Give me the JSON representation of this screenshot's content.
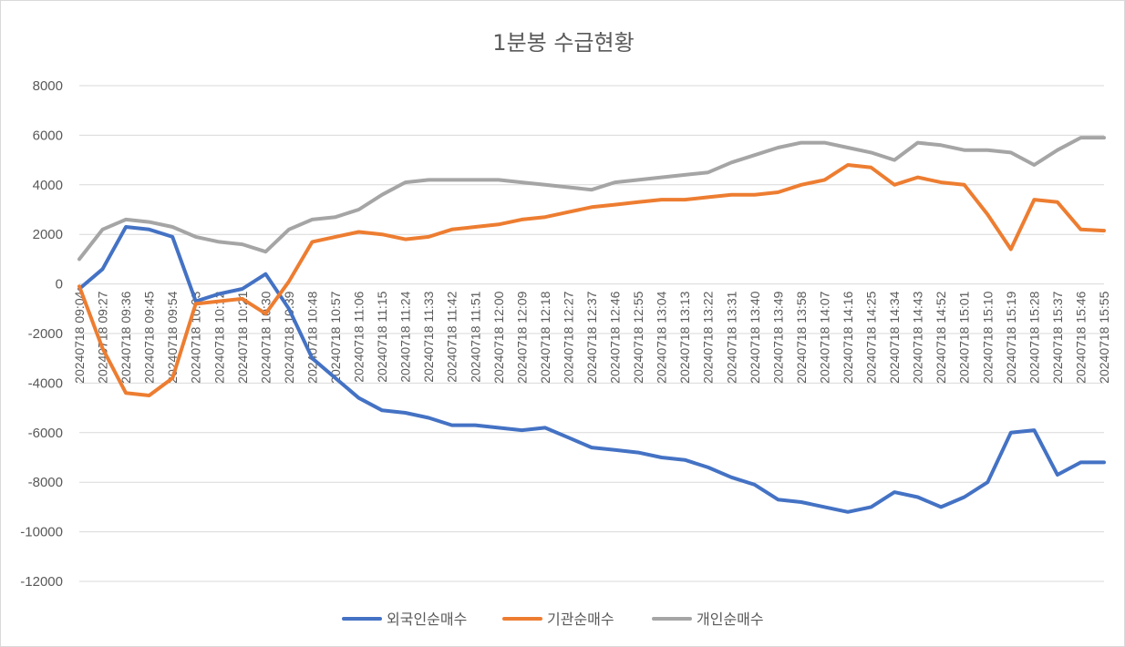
{
  "chart_data": {
    "type": "line",
    "title": "1분봉 수급현황",
    "xlabel": "",
    "ylabel": "",
    "ylim": [
      -12000,
      8000
    ],
    "yticks": [
      8000,
      6000,
      4000,
      2000,
      0,
      -2000,
      -4000,
      -6000,
      -8000,
      -10000,
      -12000
    ],
    "ytick_labels": [
      "8000",
      "6000",
      "4000",
      "2000",
      "0",
      "-2000",
      "-4000",
      "-6000",
      "-8000",
      "-10000",
      "-12000"
    ],
    "xtick_labels": [
      "20240718 09:04",
      "20240718 09:27",
      "20240718 09:36",
      "20240718 09:45",
      "20240718 09:54",
      "20240718 10:03",
      "20240718 10:12",
      "20240718 10:21",
      "20240718 10:30",
      "20240718 10:39",
      "20240718 10:48",
      "20240718 10:57",
      "20240718 11:06",
      "20240718 11:15",
      "20240718 11:24",
      "20240718 11:33",
      "20240718 11:42",
      "20240718 11:51",
      "20240718 12:00",
      "20240718 12:09",
      "20240718 12:18",
      "20240718 12:27",
      "20240718 12:37",
      "20240718 12:46",
      "20240718 12:55",
      "20240718 13:04",
      "20240718 13:13",
      "20240718 13:22",
      "20240718 13:31",
      "20240718 13:40",
      "20240718 13:49",
      "20240718 13:58",
      "20240718 14:07",
      "20240718 14:16",
      "20240718 14:25",
      "20240718 14:34",
      "20240718 14:43",
      "20240718 14:52",
      "20240718 15:01",
      "20240718 15:10",
      "20240718 15:19",
      "20240718 15:28",
      "20240718 15:37",
      "20240718 15:46",
      "20240718 15:55"
    ],
    "grid": true,
    "legend_position": "bottom",
    "series": [
      {
        "name": "외국인순매수",
        "color": "#4472C4",
        "values": [
          -200,
          600,
          2300,
          2200,
          1900,
          -700,
          -400,
          -200,
          400,
          -1000,
          -3000,
          -3800,
          -4600,
          -5100,
          -5200,
          -5400,
          -5700,
          -5700,
          -5800,
          -5900,
          -5800,
          -6200,
          -6600,
          -6700,
          -6800,
          -7000,
          -7100,
          -7400,
          -7800,
          -8100,
          -8700,
          -8800,
          -9000,
          -9200,
          -9000,
          -8400,
          -8600,
          -9000,
          -8600,
          -8000,
          -6000,
          -5900,
          -7700,
          -7200,
          -7200
        ]
      },
      {
        "name": "기관순매수",
        "color": "#ED7D31",
        "values": [
          -100,
          -2600,
          -4400,
          -4500,
          -3800,
          -800,
          -700,
          -600,
          -1200,
          100,
          1700,
          1900,
          2100,
          2000,
          1800,
          1900,
          2200,
          2300,
          2400,
          2600,
          2700,
          2900,
          3100,
          3200,
          3300,
          3400,
          3400,
          3500,
          3600,
          3600,
          3700,
          4000,
          4200,
          4800,
          4700,
          4000,
          4300,
          4100,
          4000,
          2800,
          1400,
          3400,
          3300,
          2200,
          2150
        ]
      },
      {
        "name": "개인순매수",
        "color": "#A5A5A5",
        "values": [
          1000,
          2200,
          2600,
          2500,
          2300,
          1900,
          1700,
          1600,
          1300,
          2200,
          2600,
          2700,
          3000,
          3600,
          4100,
          4200,
          4200,
          4200,
          4200,
          4100,
          4000,
          3900,
          3800,
          4100,
          4200,
          4300,
          4400,
          4500,
          4900,
          5200,
          5500,
          5700,
          5700,
          5500,
          5300,
          5000,
          5700,
          5600,
          5400,
          5400,
          5300,
          4800,
          5400,
          5900,
          5900
        ]
      }
    ]
  }
}
